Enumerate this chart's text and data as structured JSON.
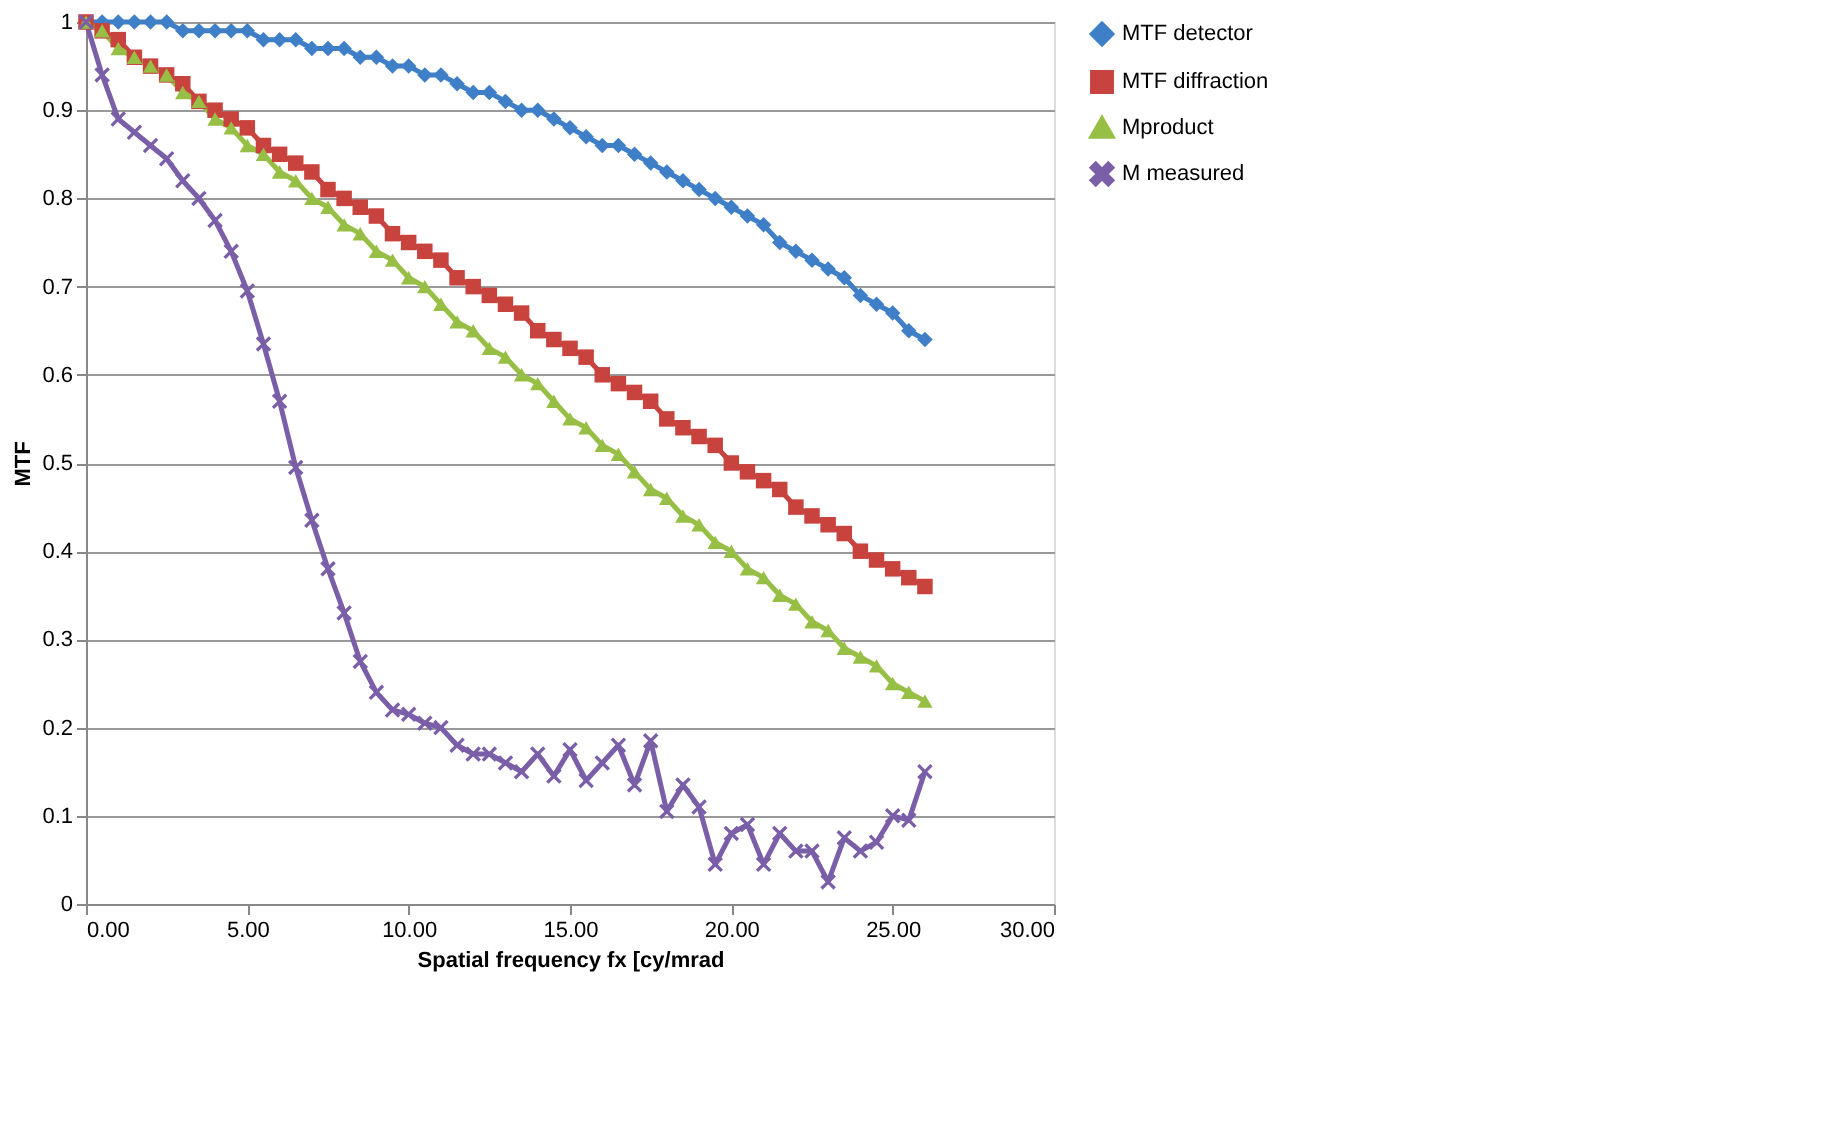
{
  "chart_data": {
    "type": "line",
    "xlabel": "Spatial frequency fx [cy/mrad",
    "ylabel": "MTF",
    "x": [
      0,
      0.5,
      1,
      1.5,
      2,
      2.5,
      3,
      3.5,
      4,
      4.5,
      5,
      5.5,
      6,
      6.5,
      7,
      7.5,
      8,
      8.5,
      9,
      9.5,
      10,
      10.5,
      11,
      11.5,
      12,
      12.5,
      13,
      13.5,
      14,
      14.5,
      15,
      15.5,
      16,
      16.5,
      17,
      17.5,
      18,
      18.5,
      19,
      19.5,
      20,
      20.5,
      21,
      21.5,
      22,
      22.5,
      23,
      23.5,
      24,
      24.5,
      25,
      25.5,
      26
    ],
    "series": [
      {
        "name": "MTF detector",
        "color": "#3f7fc7",
        "marker": "diamond",
        "values": [
          1.0,
          1.0,
          1.0,
          1.0,
          1.0,
          1.0,
          0.99,
          0.99,
          0.99,
          0.99,
          0.99,
          0.98,
          0.98,
          0.98,
          0.97,
          0.97,
          0.97,
          0.96,
          0.96,
          0.95,
          0.95,
          0.94,
          0.94,
          0.93,
          0.92,
          0.92,
          0.91,
          0.9,
          0.9,
          0.89,
          0.88,
          0.87,
          0.86,
          0.86,
          0.85,
          0.84,
          0.83,
          0.82,
          0.81,
          0.8,
          0.79,
          0.78,
          0.77,
          0.75,
          0.74,
          0.73,
          0.72,
          0.71,
          0.69,
          0.68,
          0.67,
          0.65,
          0.64
        ]
      },
      {
        "name": "MTF diffraction",
        "color": "#c8423e",
        "marker": "square",
        "values": [
          1.0,
          0.99,
          0.98,
          0.96,
          0.95,
          0.94,
          0.93,
          0.91,
          0.9,
          0.89,
          0.88,
          0.86,
          0.85,
          0.84,
          0.83,
          0.81,
          0.8,
          0.79,
          0.78,
          0.76,
          0.75,
          0.74,
          0.73,
          0.71,
          0.7,
          0.69,
          0.68,
          0.67,
          0.65,
          0.64,
          0.63,
          0.62,
          0.6,
          0.59,
          0.58,
          0.57,
          0.55,
          0.54,
          0.53,
          0.52,
          0.5,
          0.49,
          0.48,
          0.47,
          0.45,
          0.44,
          0.43,
          0.42,
          0.4,
          0.39,
          0.38,
          0.37,
          0.36
        ]
      },
      {
        "name": "Mproduct",
        "color": "#98bf45",
        "marker": "triangle",
        "values": [
          1.0,
          0.99,
          0.97,
          0.96,
          0.95,
          0.94,
          0.92,
          0.91,
          0.89,
          0.88,
          0.86,
          0.85,
          0.83,
          0.82,
          0.8,
          0.79,
          0.77,
          0.76,
          0.74,
          0.73,
          0.71,
          0.7,
          0.68,
          0.66,
          0.65,
          0.63,
          0.62,
          0.6,
          0.59,
          0.57,
          0.55,
          0.54,
          0.52,
          0.51,
          0.49,
          0.47,
          0.46,
          0.44,
          0.43,
          0.41,
          0.4,
          0.38,
          0.37,
          0.35,
          0.34,
          0.32,
          0.31,
          0.29,
          0.28,
          0.27,
          0.25,
          0.24,
          0.23
        ]
      },
      {
        "name": "M measured",
        "color": "#7a5ea8",
        "marker": "cross",
        "values": [
          1.0,
          0.94,
          0.89,
          0.875,
          0.86,
          0.845,
          0.82,
          0.8,
          0.775,
          0.74,
          0.695,
          0.635,
          0.57,
          0.495,
          0.435,
          0.38,
          0.33,
          0.275,
          0.24,
          0.22,
          0.215,
          0.205,
          0.2,
          0.18,
          0.17,
          0.17,
          0.16,
          0.15,
          0.17,
          0.145,
          0.175,
          0.14,
          0.16,
          0.18,
          0.135,
          0.185,
          0.105,
          0.135,
          0.11,
          0.045,
          0.08,
          0.09,
          0.045,
          0.08,
          0.06,
          0.06,
          0.025,
          0.075,
          0.06,
          0.07,
          0.1,
          0.095,
          0.15
        ]
      }
    ],
    "xlim": [
      0,
      30
    ],
    "xticks": [
      {
        "value": 0,
        "label": "0.00"
      },
      {
        "value": 5,
        "label": "5.00"
      },
      {
        "value": 10,
        "label": "10.00"
      },
      {
        "value": 15,
        "label": "15.00"
      },
      {
        "value": 20,
        "label": "20.00"
      },
      {
        "value": 25,
        "label": "25.00"
      },
      {
        "value": 30,
        "label": "30.00"
      }
    ],
    "ylim": [
      0,
      1
    ],
    "yticks": [
      0,
      0.1,
      0.2,
      0.3,
      0.4,
      0.5,
      0.6,
      0.7,
      0.8,
      0.9,
      1
    ],
    "grid": "y",
    "legend": "right",
    "line_style": "solid"
  }
}
